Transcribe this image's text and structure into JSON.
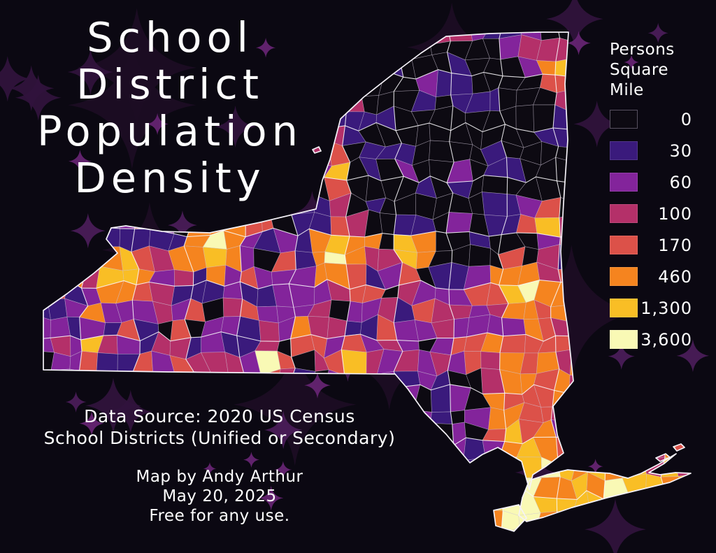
{
  "title": {
    "lines": [
      "School",
      "District",
      "Population",
      "Density"
    ]
  },
  "legend": {
    "title_lines": [
      "Persons",
      "Square",
      "Mile"
    ],
    "items": [
      {
        "label": "0",
        "color": "#0d0a12"
      },
      {
        "label": "30",
        "color": "#3a1a7c"
      },
      {
        "label": "60",
        "color": "#83249b"
      },
      {
        "label": "100",
        "color": "#b43069"
      },
      {
        "label": "170",
        "color": "#dc5149"
      },
      {
        "label": "460",
        "color": "#f5841f"
      },
      {
        "label": "1,300",
        "color": "#f9be25"
      },
      {
        "label": "3,600",
        "color": "#f9f9b5"
      }
    ]
  },
  "source": {
    "line1": "Data Source: 2020 US Census",
    "line2": "School Districts (Unified or Secondary)"
  },
  "credit": {
    "line1": "Map by Andy Arthur",
    "line2": "May 20, 2025",
    "line3": "Free for any use."
  },
  "colors": {
    "background": "#0b0812",
    "text": "#ffffff",
    "state_border": "#f5f2f8",
    "star_bright": "#652472",
    "star_mid": "#4a1c58",
    "star_dim": "#30133c",
    "star_faint": "#1c0d24"
  }
}
